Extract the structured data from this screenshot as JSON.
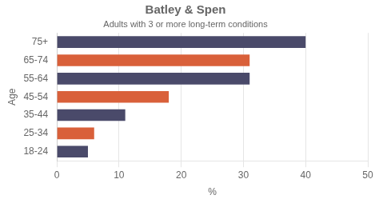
{
  "chart_data": {
    "type": "bar",
    "orientation": "horizontal",
    "title": "Batley & Spen",
    "subtitle": "Adults with 3 or more long-term conditions",
    "xlabel": "%",
    "ylabel": "Age",
    "categories": [
      "18-24",
      "25-34",
      "35-44",
      "45-54",
      "55-64",
      "65-74",
      "75+"
    ],
    "values": [
      5,
      6,
      11,
      18,
      31,
      31,
      40
    ],
    "colors": [
      "#4a4a6a",
      "#d9603a",
      "#4a4a6a",
      "#d9603a",
      "#4a4a6a",
      "#d9603a",
      "#4a4a6a"
    ],
    "xlim": [
      0,
      50
    ],
    "xticks": [
      0,
      10,
      20,
      30,
      40,
      50
    ],
    "grid": true
  }
}
